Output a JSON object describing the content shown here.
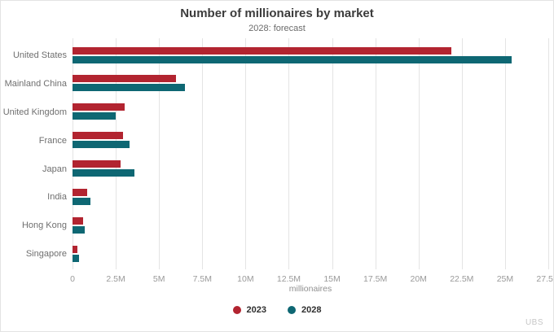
{
  "header": {
    "title": "Number of millionaires by market",
    "subtitle": "2028: forecast"
  },
  "chart_data": {
    "type": "bar",
    "orientation": "horizontal",
    "title": "Number of millionaires by market",
    "subtitle": "2028: forecast",
    "categories": [
      "United States",
      "Mainland China",
      "United Kingdom",
      "France",
      "Japan",
      "India",
      "Hong Kong",
      "Singapore"
    ],
    "series": [
      {
        "name": "2023",
        "color": "#b22430",
        "values": [
          21.9,
          6.0,
          3.0,
          2.9,
          2.8,
          0.85,
          0.6,
          0.3
        ]
      },
      {
        "name": "2028",
        "color": "#0e6773",
        "values": [
          25.4,
          6.5,
          2.5,
          3.3,
          3.6,
          1.05,
          0.7,
          0.4
        ]
      }
    ],
    "values_unit": "millions",
    "xlabel": "millionaires",
    "xlim": [
      0,
      27.5
    ],
    "xticks": [
      0,
      2.5,
      5,
      7.5,
      10,
      12.5,
      15,
      17.5,
      20,
      22.5,
      25,
      27.5
    ],
    "xtick_labels": [
      "0",
      "2.5M",
      "5M",
      "7.5M",
      "10M",
      "12.5M",
      "15M",
      "17.5M",
      "20M",
      "22.5M",
      "25M",
      "27.5M"
    ],
    "grid": true,
    "legend_position": "bottom"
  },
  "footer": {
    "watermark": "UBS"
  }
}
